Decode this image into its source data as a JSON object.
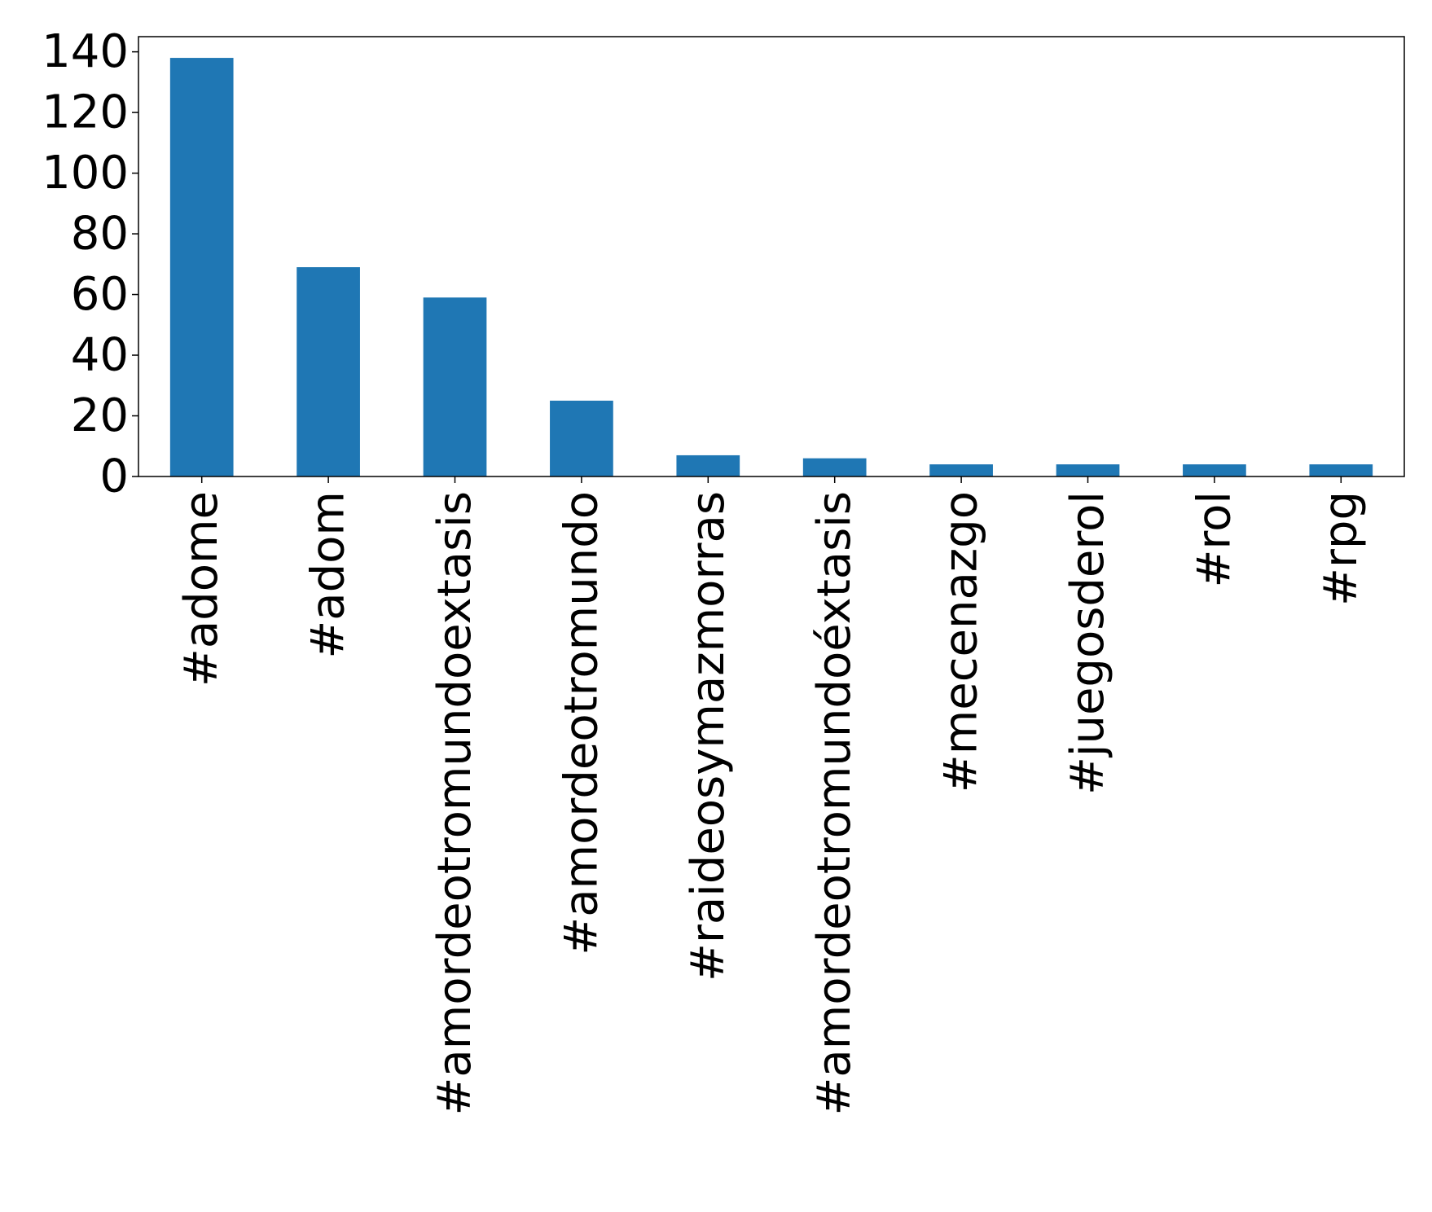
{
  "chart_data": {
    "type": "bar",
    "title": "",
    "xlabel": "",
    "ylabel": "",
    "categories": [
      "#adome",
      "#adom",
      "#amordeotromundoextasis",
      "#amordeotromundo",
      "#raideosymazmorras",
      "#amordeotromundoéxtasis",
      "#mecenazgo",
      "#juegosderol",
      "#rol",
      "#rpg"
    ],
    "values": [
      138,
      69,
      59,
      25,
      7,
      6,
      4,
      4,
      4,
      4
    ],
    "ylim": [
      0,
      145
    ],
    "yticks": [
      0,
      20,
      40,
      60,
      80,
      100,
      120,
      140
    ],
    "ytick_labels": [
      "0",
      "20",
      "40",
      "60",
      "80",
      "100",
      "120",
      "140"
    ],
    "bar_color": "#1f77b4",
    "grid": false,
    "legend": "none"
  }
}
